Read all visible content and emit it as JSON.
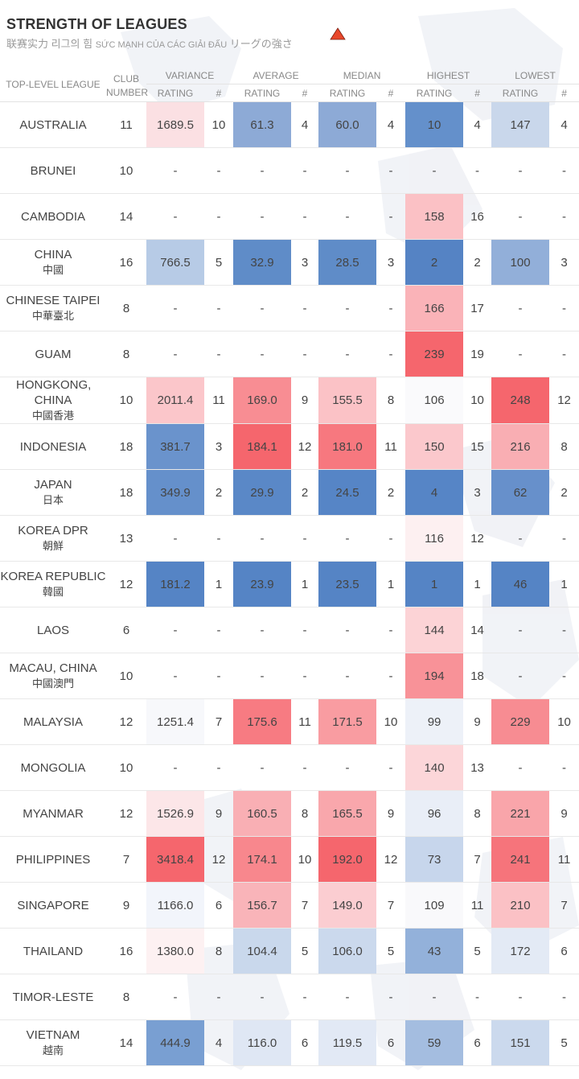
{
  "header": {
    "title": "STRENGTH OF LEAGUES",
    "subtitle_zh": "联赛实力",
    "subtitle_ko": "리그의 힘",
    "subtitle_vi": "SỨC MẠNH CỦA CÁC GIẢI ĐẤU",
    "subtitle_ja": "リーグの強さ",
    "warning_icon": "warning-triangle-icon",
    "warning_color": "#e8472b"
  },
  "columns": {
    "league": "TOP-LEVEL LEAGUE",
    "club_line1": "CLUB",
    "club_line2": "NUMBER",
    "groups": [
      "VARIANCE",
      "AVERAGE",
      "MEDIAN",
      "HIGHEST",
      "LOWEST"
    ],
    "rating": "RATING",
    "rank": "#"
  },
  "colors": {
    "blue_strong": "#5a87c5",
    "blue_light": "#dfe8f4",
    "red_strong": "#f6636b",
    "red_light": "#fbe3e5",
    "neutral": "#f7f7f9"
  },
  "rows": [
    {
      "name": "AUSTRALIA",
      "cjk": "",
      "club": "11",
      "variance": [
        "1689.5",
        "10"
      ],
      "average": [
        "61.3",
        "4"
      ],
      "median": [
        "60.0",
        "4"
      ],
      "highest": [
        "10",
        "4"
      ],
      "lowest": [
        "147",
        "4"
      ],
      "tint": {
        "variance": "#fbe0e3",
        "average": "#8daad6",
        "median": "#8daad6",
        "highest": "#6490cb",
        "lowest": "#c9d7eb"
      }
    },
    {
      "name": "BRUNEI",
      "cjk": "",
      "club": "10",
      "variance": [
        "-",
        "-"
      ],
      "average": [
        "-",
        "-"
      ],
      "median": [
        "-",
        "-"
      ],
      "highest": [
        "-",
        "-"
      ],
      "lowest": [
        "-",
        "-"
      ],
      "tint": {}
    },
    {
      "name": "CAMBODIA",
      "cjk": "",
      "club": "14",
      "variance": [
        "-",
        "-"
      ],
      "average": [
        "-",
        "-"
      ],
      "median": [
        "-",
        "-"
      ],
      "highest": [
        "158",
        "16"
      ],
      "lowest": [
        "-",
        "-"
      ],
      "tint": {
        "highest": "#fbc1c5"
      }
    },
    {
      "name": "CHINA",
      "cjk": "中國",
      "club": "16",
      "variance": [
        "766.5",
        "5"
      ],
      "average": [
        "32.9",
        "3"
      ],
      "median": [
        "28.5",
        "3"
      ],
      "highest": [
        "2",
        "2"
      ],
      "lowest": [
        "100",
        "3"
      ],
      "tint": {
        "variance": "#b7cbe6",
        "average": "#5f8cc8",
        "median": "#5f8cc8",
        "highest": "#5583c4",
        "lowest": "#92afd9"
      }
    },
    {
      "name": "CHINESE TAIPEI",
      "cjk": "中華臺北",
      "club": "8",
      "variance": [
        "-",
        "-"
      ],
      "average": [
        "-",
        "-"
      ],
      "median": [
        "-",
        "-"
      ],
      "highest": [
        "166",
        "17"
      ],
      "lowest": [
        "-",
        "-"
      ],
      "tint": {
        "highest": "#fab3b8"
      }
    },
    {
      "name": "GUAM",
      "cjk": "",
      "club": "8",
      "variance": [
        "-",
        "-"
      ],
      "average": [
        "-",
        "-"
      ],
      "median": [
        "-",
        "-"
      ],
      "highest": [
        "239",
        "19"
      ],
      "lowest": [
        "-",
        "-"
      ],
      "tint": {
        "highest": "#f5666d"
      }
    },
    {
      "name": "HONGKONG, CHINA",
      "cjk": "中國香港",
      "club": "10",
      "variance": [
        "2011.4",
        "11"
      ],
      "average": [
        "169.0",
        "9"
      ],
      "median": [
        "155.5",
        "8"
      ],
      "highest": [
        "106",
        "10"
      ],
      "lowest": [
        "248",
        "12"
      ],
      "tint": {
        "variance": "#fbc6ca",
        "average": "#f88d93",
        "median": "#fbc2c6",
        "highest": "#fafafc",
        "lowest": "#f5666d"
      }
    },
    {
      "name": "INDONESIA",
      "cjk": "",
      "club": "18",
      "variance": [
        "381.7",
        "3"
      ],
      "average": [
        "184.1",
        "12"
      ],
      "median": [
        "181.0",
        "11"
      ],
      "highest": [
        "150",
        "15"
      ],
      "lowest": [
        "216",
        "8"
      ],
      "tint": {
        "variance": "#6a93cc",
        "average": "#f5666d",
        "median": "#f7787f",
        "highest": "#fbc8cc",
        "lowest": "#f9aeb3"
      }
    },
    {
      "name": "JAPAN",
      "cjk": "日本",
      "club": "18",
      "variance": [
        "349.9",
        "2"
      ],
      "average": [
        "29.9",
        "2"
      ],
      "median": [
        "24.5",
        "2"
      ],
      "highest": [
        "4",
        "3"
      ],
      "lowest": [
        "62",
        "2"
      ],
      "tint": {
        "variance": "#6590cb",
        "average": "#5a88c7",
        "median": "#5685c6",
        "highest": "#5685c6",
        "lowest": "#6790cb"
      }
    },
    {
      "name": "KOREA DPR",
      "cjk": "朝鮮",
      "club": "13",
      "variance": [
        "-",
        "-"
      ],
      "average": [
        "-",
        "-"
      ],
      "median": [
        "-",
        "-"
      ],
      "highest": [
        "116",
        "12"
      ],
      "lowest": [
        "-",
        "-"
      ],
      "tint": {
        "highest": "#fdf0f1"
      }
    },
    {
      "name": "KOREA REPUBLIC",
      "cjk": "韓國",
      "club": "12",
      "variance": [
        "181.2",
        "1"
      ],
      "average": [
        "23.9",
        "1"
      ],
      "median": [
        "23.5",
        "1"
      ],
      "highest": [
        "1",
        "1"
      ],
      "lowest": [
        "46",
        "1"
      ],
      "tint": {
        "variance": "#5584c5",
        "average": "#5584c5",
        "median": "#5584c5",
        "highest": "#5584c5",
        "lowest": "#5584c5"
      }
    },
    {
      "name": "LAOS",
      "cjk": "",
      "club": "6",
      "variance": [
        "-",
        "-"
      ],
      "average": [
        "-",
        "-"
      ],
      "median": [
        "-",
        "-"
      ],
      "highest": [
        "144",
        "14"
      ],
      "lowest": [
        "-",
        "-"
      ],
      "tint": {
        "highest": "#fcd3d6"
      }
    },
    {
      "name": "MACAU, CHINA",
      "cjk": "中國澳門",
      "club": "10",
      "variance": [
        "-",
        "-"
      ],
      "average": [
        "-",
        "-"
      ],
      "median": [
        "-",
        "-"
      ],
      "highest": [
        "194",
        "18"
      ],
      "lowest": [
        "-",
        "-"
      ],
      "tint": {
        "highest": "#f89298"
      }
    },
    {
      "name": "MALAYSIA",
      "cjk": "",
      "club": "12",
      "variance": [
        "1251.4",
        "7"
      ],
      "average": [
        "175.6",
        "11"
      ],
      "median": [
        "171.5",
        "10"
      ],
      "highest": [
        "99",
        "9"
      ],
      "lowest": [
        "229",
        "10"
      ],
      "tint": {
        "variance": "#f7f8fb",
        "average": "#f77b82",
        "median": "#f99ca1",
        "highest": "#edf1f8",
        "lowest": "#f78c92"
      }
    },
    {
      "name": "MONGOLIA",
      "cjk": "",
      "club": "10",
      "variance": [
        "-",
        "-"
      ],
      "average": [
        "-",
        "-"
      ],
      "median": [
        "-",
        "-"
      ],
      "highest": [
        "140",
        "13"
      ],
      "lowest": [
        "-",
        "-"
      ],
      "tint": {
        "highest": "#fcd6d9"
      }
    },
    {
      "name": "MYANMAR",
      "cjk": "",
      "club": "12",
      "variance": [
        "1526.9",
        "9"
      ],
      "average": [
        "160.5",
        "8"
      ],
      "median": [
        "165.5",
        "9"
      ],
      "highest": [
        "96",
        "8"
      ],
      "lowest": [
        "221",
        "9"
      ],
      "tint": {
        "variance": "#fce6e8",
        "average": "#f9afb4",
        "median": "#f9a7ac",
        "highest": "#e9eef7",
        "lowest": "#f9a5aa"
      }
    },
    {
      "name": "PHILIPPINES",
      "cjk": "",
      "club": "7",
      "variance": [
        "3418.4",
        "12"
      ],
      "average": [
        "174.1",
        "10"
      ],
      "median": [
        "192.0",
        "12"
      ],
      "highest": [
        "73",
        "7"
      ],
      "lowest": [
        "241",
        "11"
      ],
      "tint": {
        "variance": "#f5666d",
        "average": "#f8878d",
        "median": "#f5666d",
        "highest": "#c7d6ec",
        "lowest": "#f6747b"
      }
    },
    {
      "name": "SINGAPORE",
      "cjk": "",
      "club": "9",
      "variance": [
        "1166.0",
        "6"
      ],
      "average": [
        "156.7",
        "7"
      ],
      "median": [
        "149.0",
        "7"
      ],
      "highest": [
        "109",
        "11"
      ],
      "lowest": [
        "210",
        "7"
      ],
      "tint": {
        "variance": "#f2f5fb",
        "average": "#f9b4b9",
        "median": "#fbcdd1",
        "highest": "#f9f9fb",
        "lowest": "#fbc1c5"
      }
    },
    {
      "name": "THAILAND",
      "cjk": "",
      "club": "16",
      "variance": [
        "1380.0",
        "8"
      ],
      "average": [
        "104.4",
        "5"
      ],
      "median": [
        "106.0",
        "5"
      ],
      "highest": [
        "43",
        "5"
      ],
      "lowest": [
        "172",
        "6"
      ],
      "tint": {
        "variance": "#fdf1f2",
        "average": "#c9d8ec",
        "median": "#cbd9ed",
        "highest": "#93b1da",
        "lowest": "#e3eaf5"
      }
    },
    {
      "name": "TIMOR-LESTE",
      "cjk": "",
      "club": "8",
      "variance": [
        "-",
        "-"
      ],
      "average": [
        "-",
        "-"
      ],
      "median": [
        "-",
        "-"
      ],
      "highest": [
        "-",
        "-"
      ],
      "lowest": [
        "-",
        "-"
      ],
      "tint": {}
    },
    {
      "name": "VIETNAM",
      "cjk": "越南",
      "club": "14",
      "variance": [
        "444.9",
        "4"
      ],
      "average": [
        "116.0",
        "6"
      ],
      "median": [
        "119.5",
        "6"
      ],
      "highest": [
        "59",
        "6"
      ],
      "lowest": [
        "151",
        "5"
      ],
      "tint": {
        "variance": "#799fd2",
        "average": "#dfe7f4",
        "median": "#e2e9f5",
        "highest": "#a4bde0",
        "lowest": "#cbd9ed"
      }
    }
  ]
}
